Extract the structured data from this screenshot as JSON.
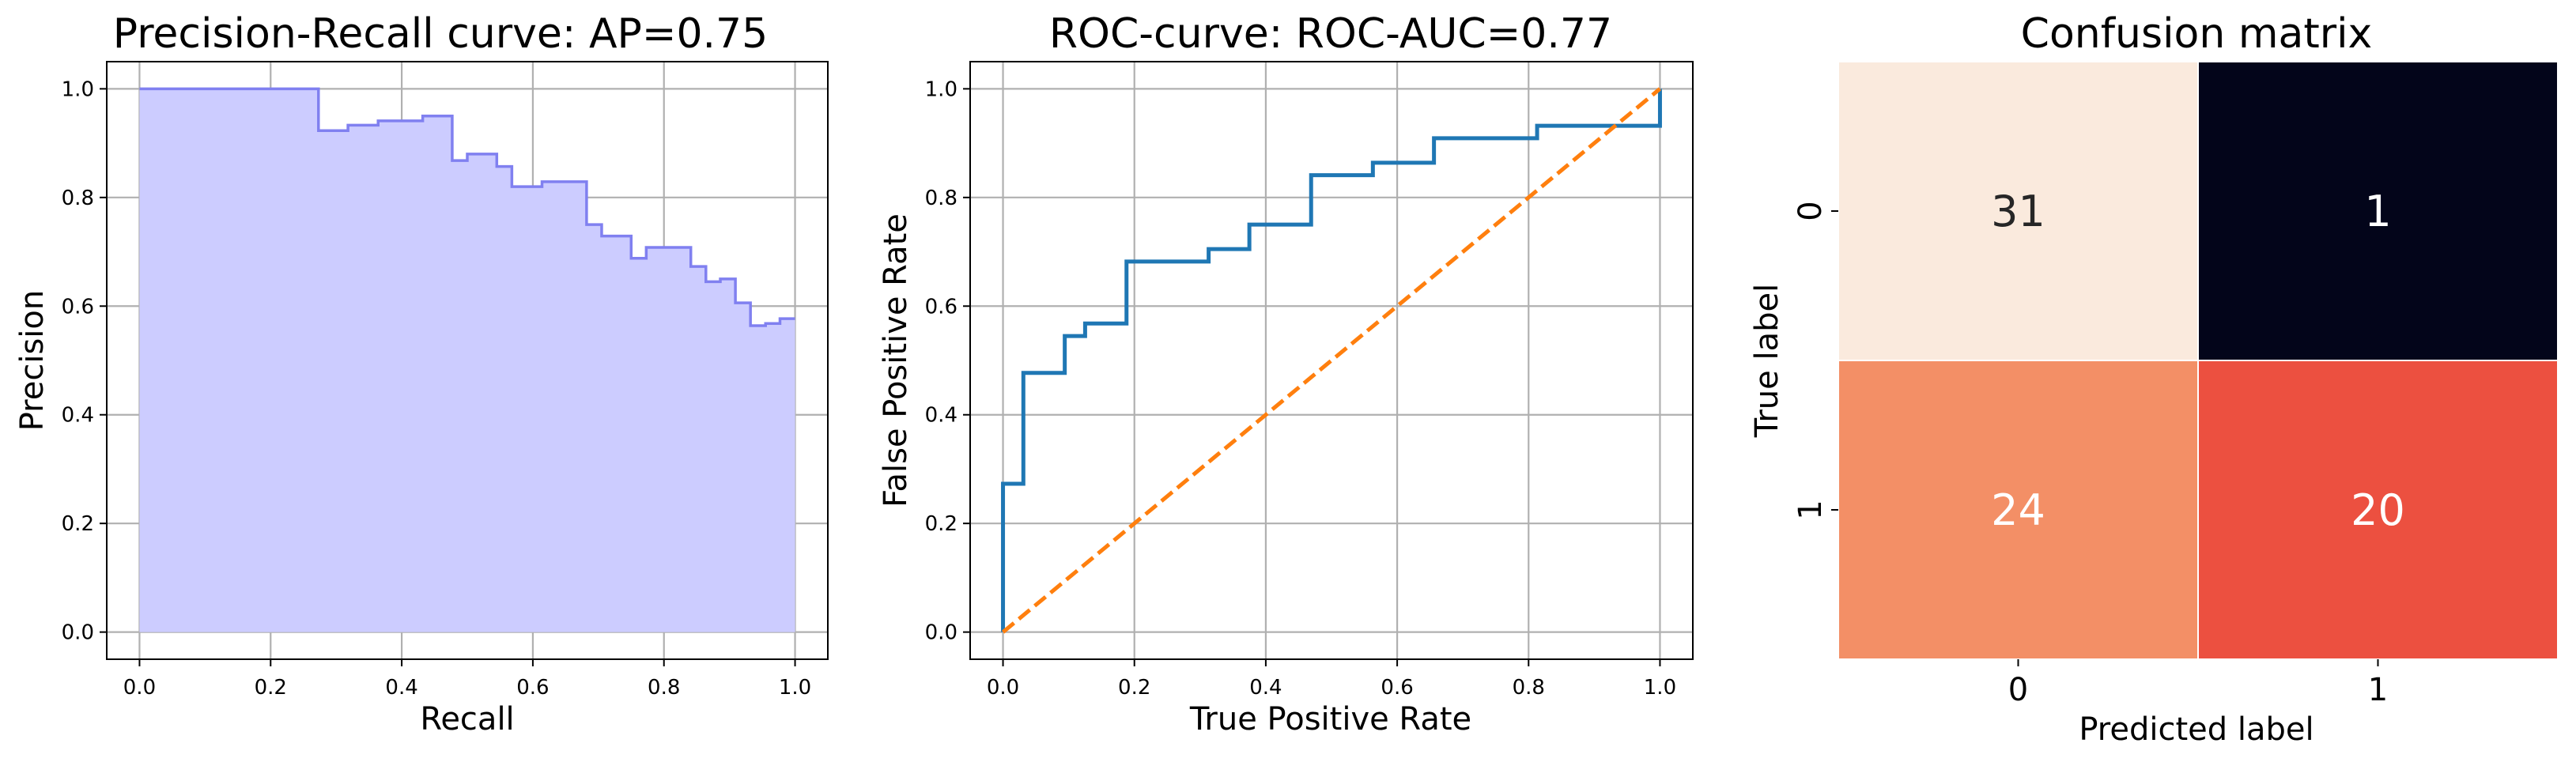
{
  "chart_data": [
    {
      "type": "area",
      "title": "Precision-Recall curve: AP=0.75",
      "xlabel": "Recall",
      "ylabel": "Precision",
      "xlim": [
        -0.05,
        1.05
      ],
      "ylim": [
        -0.05,
        1.05
      ],
      "xticks": [
        "0.0",
        "0.2",
        "0.4",
        "0.6",
        "0.8",
        "1.0"
      ],
      "yticks": [
        "0.0",
        "0.2",
        "0.4",
        "0.6",
        "0.8",
        "1.0"
      ],
      "grid": true,
      "step": "post",
      "fill_color": "#ccccff",
      "line_color": "#8080f0",
      "x": [
        0.0,
        0.273,
        0.318,
        0.364,
        0.432,
        0.477,
        0.5,
        0.545,
        0.568,
        0.614,
        0.682,
        0.705,
        0.75,
        0.773,
        0.841,
        0.864,
        0.886,
        0.909,
        0.932,
        0.955,
        0.977,
        1.0
      ],
      "y": [
        1.0,
        0.923,
        0.933,
        0.941,
        0.95,
        0.868,
        0.88,
        0.857,
        0.82,
        0.829,
        0.75,
        0.729,
        0.688,
        0.708,
        0.673,
        0.645,
        0.65,
        0.606,
        0.564,
        0.568,
        0.577,
        0.577
      ]
    },
    {
      "type": "line",
      "title": "ROC-curve: ROC-AUC=0.77",
      "xlabel": "True Positive Rate",
      "ylabel": "False Positive Rate",
      "xlim": [
        -0.05,
        1.05
      ],
      "ylim": [
        -0.05,
        1.05
      ],
      "xticks": [
        "0.0",
        "0.2",
        "0.4",
        "0.6",
        "0.8",
        "1.0"
      ],
      "yticks": [
        "0.0",
        "0.2",
        "0.4",
        "0.6",
        "0.8",
        "1.0"
      ],
      "grid": true,
      "series": [
        {
          "color": "#1f77b4",
          "style": "solid",
          "x": [
            0.0,
            0.0,
            0.031,
            0.031,
            0.094,
            0.094,
            0.125,
            0.125,
            0.188,
            0.188,
            0.313,
            0.313,
            0.375,
            0.375,
            0.469,
            0.469,
            0.563,
            0.563,
            0.656,
            0.656,
            0.813,
            0.813,
            1.0,
            1.0
          ],
          "y": [
            0.0,
            0.273,
            0.273,
            0.477,
            0.477,
            0.545,
            0.545,
            0.568,
            0.568,
            0.682,
            0.682,
            0.705,
            0.705,
            0.75,
            0.75,
            0.841,
            0.841,
            0.864,
            0.864,
            0.909,
            0.909,
            0.932,
            0.932,
            1.0
          ]
        },
        {
          "color": "#ff7f0e",
          "style": "dashed",
          "x": [
            0.0,
            1.0
          ],
          "y": [
            0.0,
            1.0
          ]
        }
      ]
    },
    {
      "type": "heatmap",
      "title": "Confusion matrix",
      "xlabel": "Predicted label",
      "ylabel": "True label",
      "x_categories": [
        "0",
        "1"
      ],
      "y_categories": [
        "0",
        "1"
      ],
      "values": [
        [
          31,
          1
        ],
        [
          24,
          20
        ]
      ],
      "cell_colors": [
        [
          "#faeadd",
          "#03051a"
        ],
        [
          "#f38f66",
          "#ec5040"
        ]
      ],
      "text_colors": [
        [
          "#262626",
          "#ffffff"
        ],
        [
          "#ffffff",
          "#ffffff"
        ]
      ]
    }
  ]
}
